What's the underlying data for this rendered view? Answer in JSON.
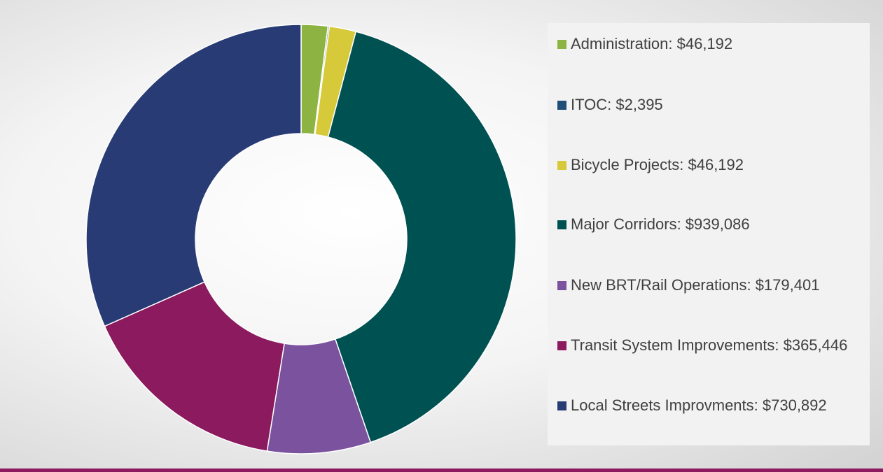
{
  "chart_data": {
    "type": "donut",
    "categories": [
      "Administration: $46,192",
      "ITOC: $2,395",
      "Bicycle Projects: $46,192",
      "Major Corridors: $939,086",
      "New BRT/Rail Operations: $179,401",
      "Transit System Improvements: $365,446",
      "Local Streets Improvments: $730,892"
    ],
    "values": [
      46192,
      2395,
      46192,
      939086,
      179401,
      365446,
      730892
    ],
    "colors": [
      "#8db443",
      "#1f4e79",
      "#d6c93a",
      "#005152",
      "#7a529e",
      "#8b1a5e",
      "#283b74"
    ],
    "legend": "right"
  }
}
